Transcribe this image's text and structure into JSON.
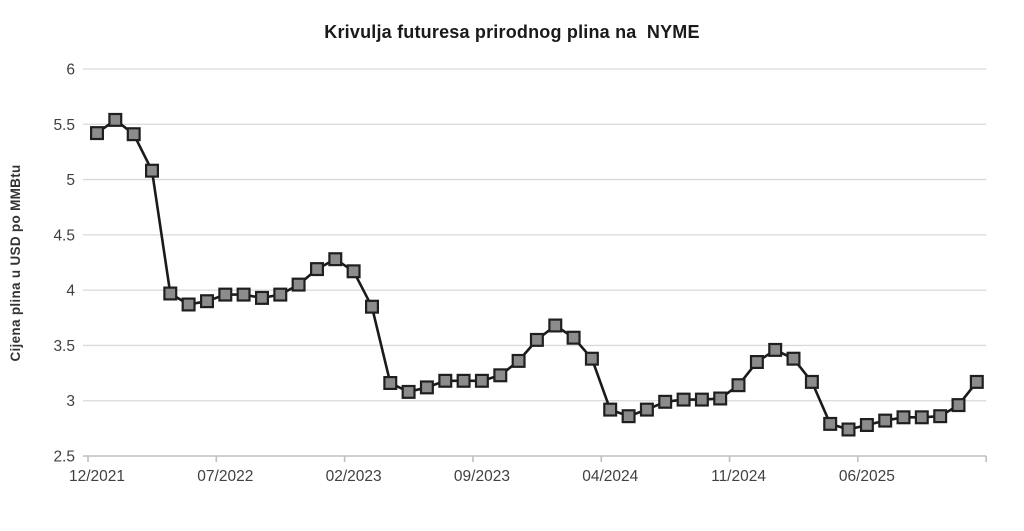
{
  "chart": {
    "title": "Krivulja futuresa prirodnog plina na  NYME",
    "ylabel": "Cijena plina u USD po MMBtu"
  },
  "chart_data": {
    "type": "line",
    "title": "Krivulja futuresa prirodnog plina na  NYME",
    "xlabel": "",
    "ylabel": "Cijena plina u USD po MMBtu",
    "ylim": [
      2.5,
      6
    ],
    "ytick_step": 0.5,
    "ytick_labels": [
      "6",
      "5.5",
      "5",
      "4.5",
      "4",
      "3.5",
      "3",
      "2.5"
    ],
    "xtick_labels": [
      "12/2021",
      "07/2022",
      "02/2023",
      "09/2023",
      "04/2024",
      "11/2024",
      "06/2025"
    ],
    "xtick_interval_months": 7,
    "grid": "horizontal",
    "legend": "none",
    "marker": "square",
    "colors": {
      "line": "#1a1a1a",
      "marker_fill": "#8c8c8c",
      "marker_stroke": "#1f1f1f",
      "gridline": "#d9d9d9",
      "axis": "#bfbfbf",
      "tick_label": "#404040"
    },
    "categories": [
      "12/2021",
      "01/2022",
      "02/2022",
      "03/2022",
      "04/2022",
      "05/2022",
      "06/2022",
      "07/2022",
      "08/2022",
      "09/2022",
      "10/2022",
      "11/2022",
      "12/2022",
      "01/2023",
      "02/2023",
      "03/2023",
      "04/2023",
      "05/2023",
      "06/2023",
      "07/2023",
      "08/2023",
      "09/2023",
      "10/2023",
      "11/2023",
      "12/2023",
      "01/2024",
      "02/2024",
      "03/2024",
      "04/2024",
      "05/2024",
      "06/2024",
      "07/2024",
      "08/2024",
      "09/2024",
      "10/2024",
      "11/2024",
      "12/2024",
      "01/2025",
      "02/2025",
      "03/2025",
      "04/2025",
      "05/2025",
      "06/2025",
      "07/2025",
      "08/2025",
      "09/2025",
      "10/2025",
      "11/2025",
      "12/2025"
    ],
    "values": [
      5.42,
      5.54,
      5.41,
      5.08,
      3.97,
      3.87,
      3.9,
      3.96,
      3.96,
      3.93,
      3.96,
      4.05,
      4.19,
      4.28,
      4.17,
      3.85,
      3.16,
      3.08,
      3.12,
      3.18,
      3.18,
      3.18,
      3.23,
      3.36,
      3.55,
      3.68,
      3.57,
      3.38,
      2.92,
      2.86,
      2.92,
      2.99,
      3.01,
      3.01,
      3.02,
      3.14,
      3.35,
      3.46,
      3.38,
      3.17,
      2.79,
      2.74,
      2.78,
      2.82,
      2.85,
      2.85,
      2.86,
      2.96,
      3.17
    ]
  }
}
